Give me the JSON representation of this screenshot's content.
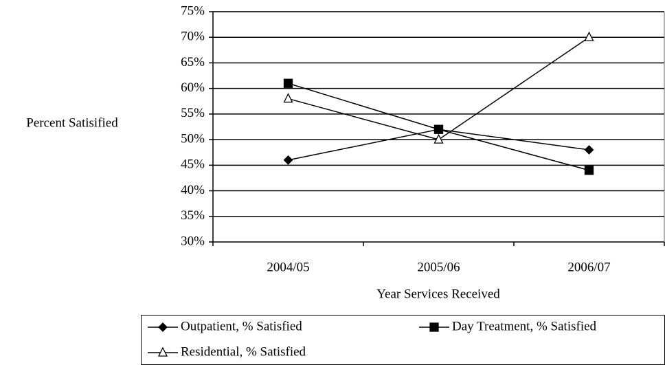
{
  "chart_data": {
    "type": "line",
    "x_label": "Year Services Received",
    "y_label": "Percent Satisified",
    "categories": [
      "2004/05",
      "2005/06",
      "2006/07"
    ],
    "series": [
      {
        "name": "Outpatient, % Satisfied",
        "color": "#000000",
        "marker": "diamond",
        "values": [
          46,
          52,
          48
        ]
      },
      {
        "name": "Day Treatment, % Satisfied",
        "color": "#000000",
        "marker": "square",
        "values": [
          61,
          52,
          44
        ]
      },
      {
        "name": "Residential, % Satisfied",
        "color": "#000000",
        "marker": "triangle",
        "values": [
          58,
          50,
          70
        ]
      }
    ],
    "ylim": [
      30,
      75
    ],
    "yticks": [
      {
        "value": 30,
        "label": "30%"
      },
      {
        "value": 35,
        "label": "35%"
      },
      {
        "value": 40,
        "label": "40%"
      },
      {
        "value": 45,
        "label": "45%"
      },
      {
        "value": 50,
        "label": "50%"
      },
      {
        "value": 55,
        "label": "55%"
      },
      {
        "value": 60,
        "label": "60%"
      },
      {
        "value": 65,
        "label": "65%"
      },
      {
        "value": 70,
        "label": "70%"
      },
      {
        "value": 75,
        "label": "75%"
      }
    ],
    "grid": true,
    "legend": "bottom"
  }
}
